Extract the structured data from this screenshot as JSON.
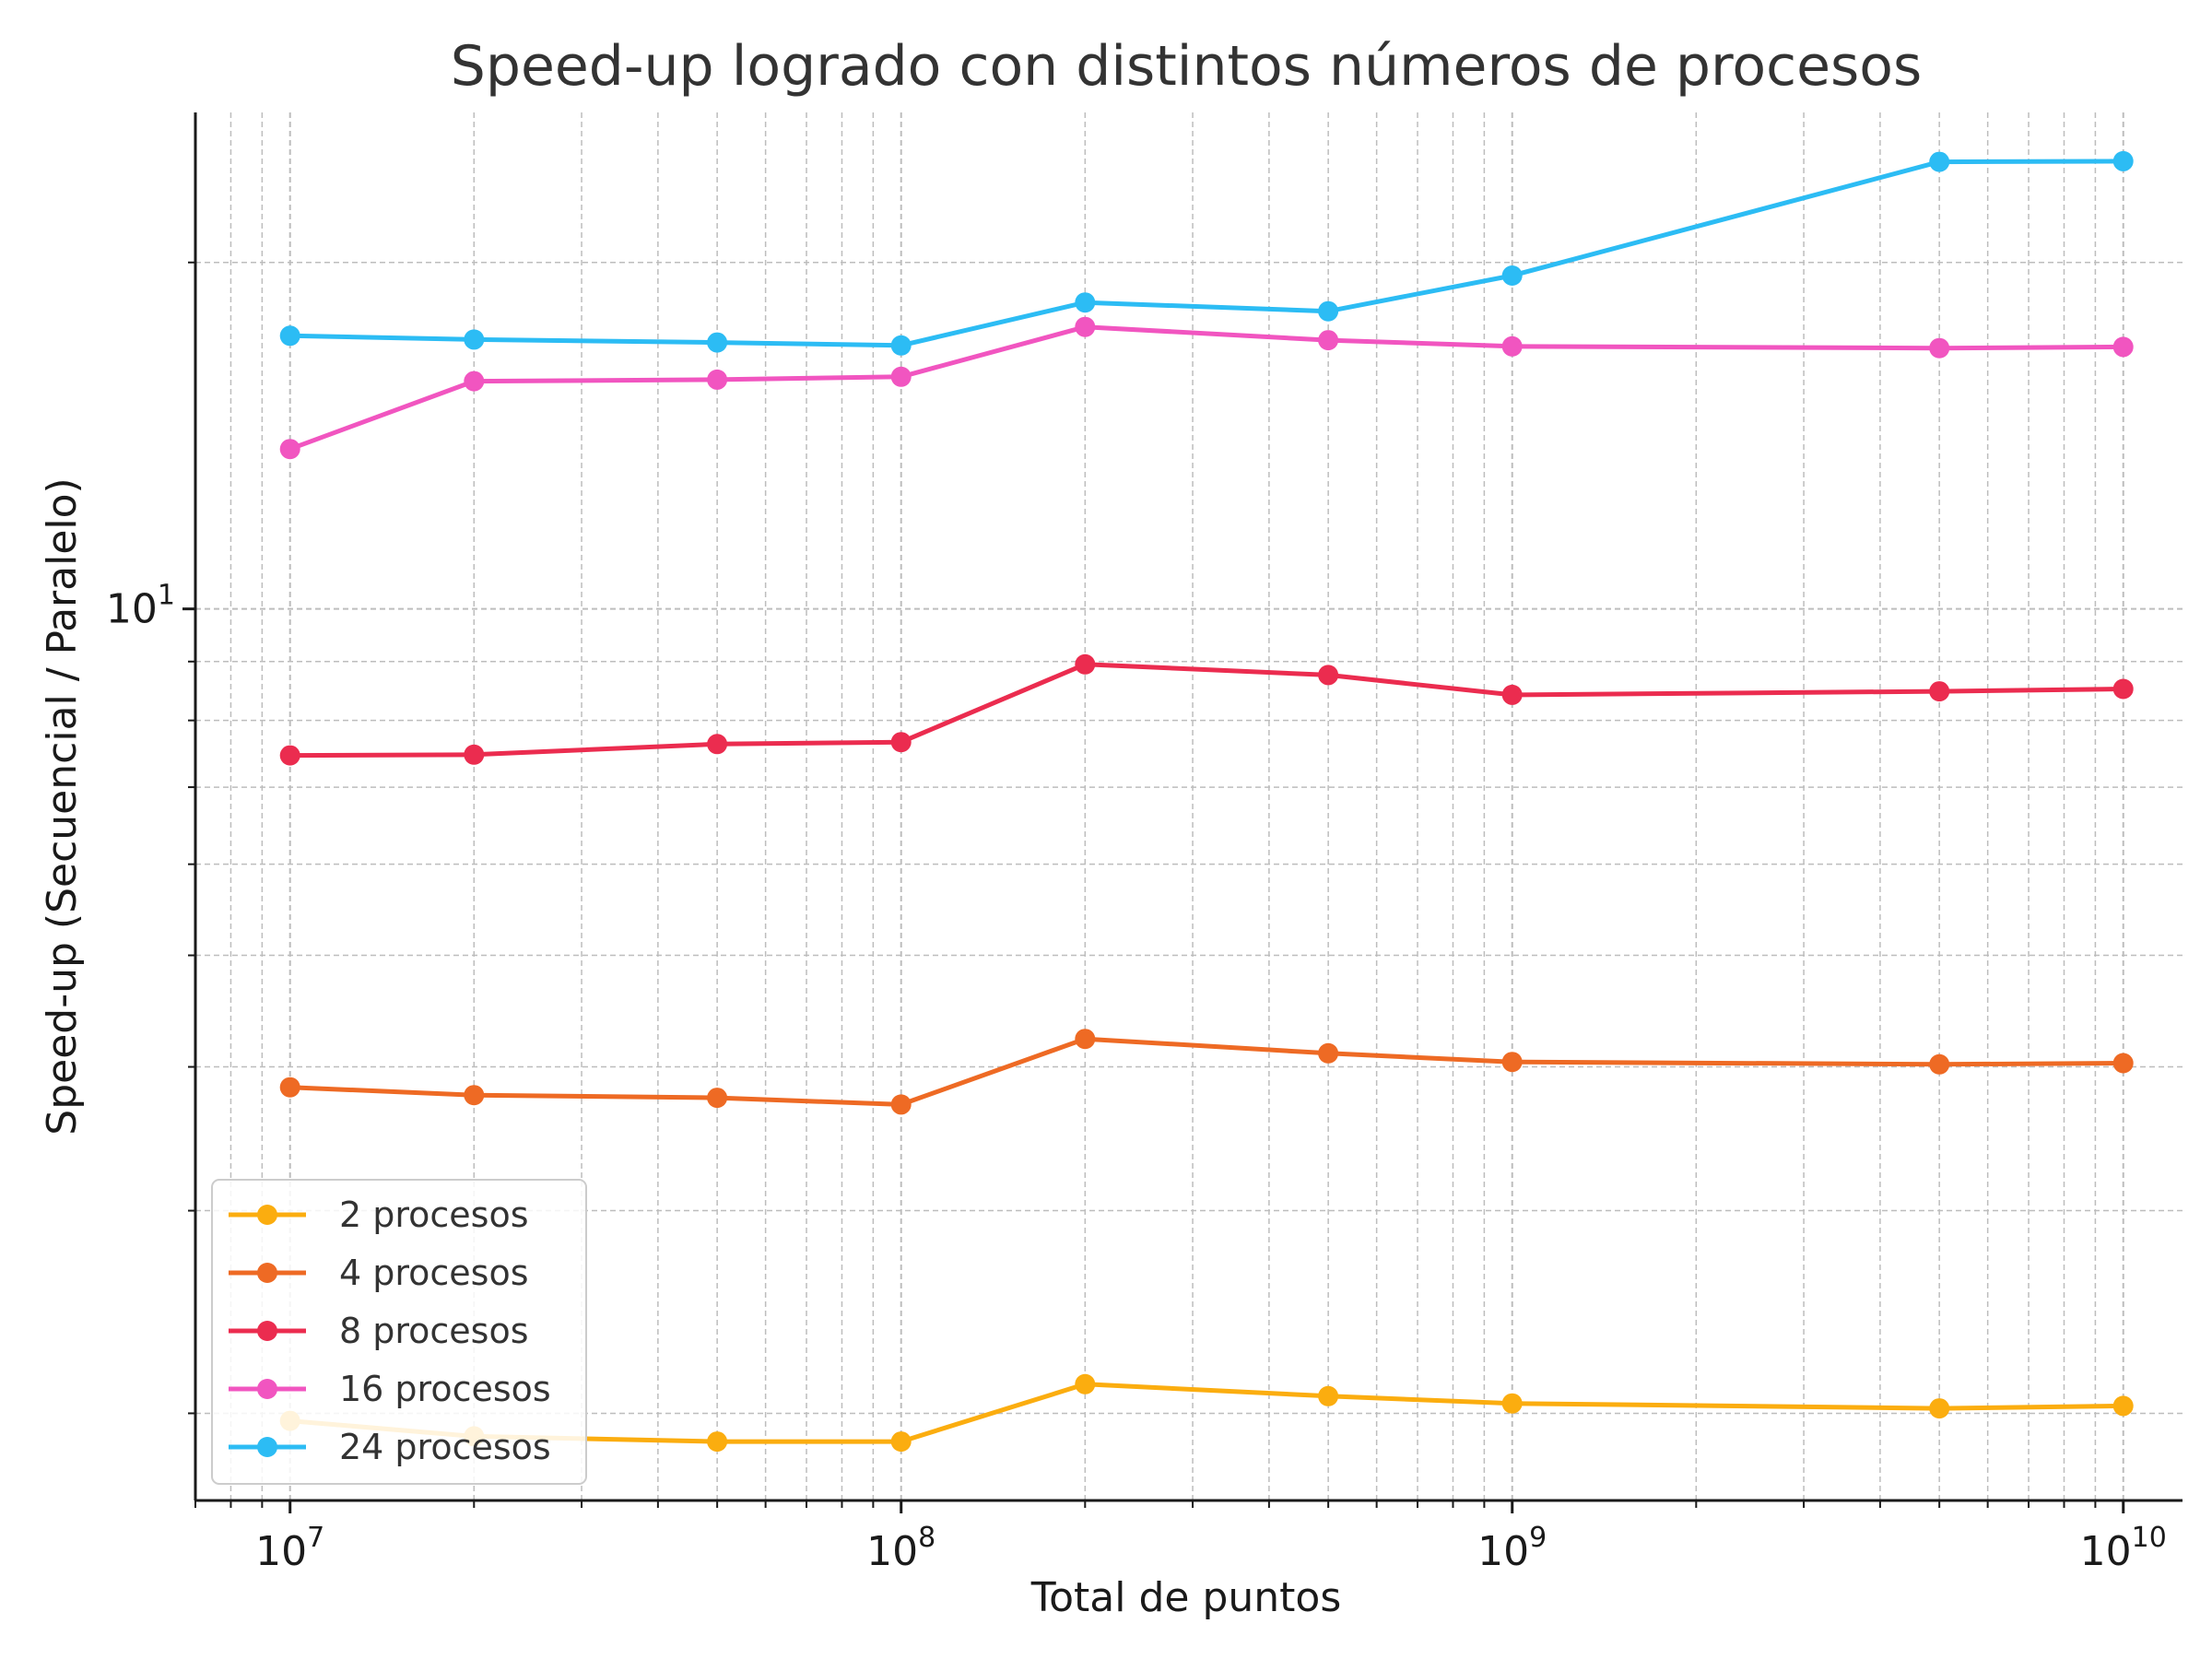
{
  "chart_data": {
    "type": "line",
    "title": "Speed-up logrado con distintos números de procesos",
    "xlabel": "Total de puntos",
    "ylabel": "Speed-up (Secuencial / Paralelo)",
    "xscale": "log",
    "yscale": "log",
    "xlim": [
      7000000,
      12500000000
    ],
    "ylim": [
      1.68,
      27.0
    ],
    "x": [
      10000000,
      20000000,
      50000000,
      100000000,
      200000000,
      500000000,
      1000000000,
      5000000000,
      10000000000
    ],
    "x_ticks": [
      {
        "value": 10000000,
        "base": "10",
        "exp": "7"
      },
      {
        "value": 100000000,
        "base": "10",
        "exp": "8"
      },
      {
        "value": 1000000000,
        "base": "10",
        "exp": "9"
      },
      {
        "value": 10000000000,
        "base": "10",
        "exp": "10"
      }
    ],
    "y_ticks": [
      {
        "value": 10,
        "base": "10",
        "exp": "1"
      }
    ],
    "grid": true,
    "legend_position": "bottom-left",
    "series": [
      {
        "name": "2 procesos",
        "color": "#FBAD0F",
        "values": [
          1.97,
          1.91,
          1.89,
          1.89,
          2.12,
          2.07,
          2.04,
          2.02,
          2.03
        ]
      },
      {
        "name": "4 procesos",
        "color": "#EE6A24",
        "values": [
          3.84,
          3.78,
          3.76,
          3.71,
          4.23,
          4.11,
          4.04,
          4.02,
          4.03
        ]
      },
      {
        "name": "8 procesos",
        "color": "#EB2C4F",
        "values": [
          7.46,
          7.47,
          7.63,
          7.66,
          8.95,
          8.76,
          8.42,
          8.48,
          8.52
        ]
      },
      {
        "name": "16 procesos",
        "color": "#F155C0",
        "values": [
          13.77,
          15.77,
          15.82,
          15.91,
          17.58,
          17.12,
          16.91,
          16.85,
          16.89
        ]
      },
      {
        "name": "24 procesos",
        "color": "#2CBCF4",
        "values": [
          17.27,
          17.14,
          17.04,
          16.94,
          18.46,
          18.14,
          19.48,
          24.46,
          24.49
        ]
      }
    ]
  }
}
